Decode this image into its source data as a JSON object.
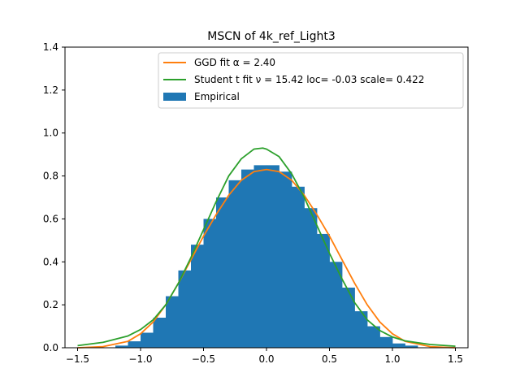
{
  "chart_data": {
    "type": "bar",
    "title": "MSCN of 4k_ref_Light3",
    "xlabel": "",
    "ylabel": "",
    "xlim": [
      -1.6,
      1.6
    ],
    "ylim": [
      0,
      1.4
    ],
    "x_ticks": [
      -1.5,
      -1.0,
      -0.5,
      0.0,
      0.5,
      1.0,
      1.5
    ],
    "x_tick_labels": [
      "−1.5",
      "−1.0",
      "−0.5",
      "0.0",
      "0.5",
      "1.0",
      "1.5"
    ],
    "y_ticks": [
      0.0,
      0.2,
      0.4,
      0.6,
      0.8,
      1.0,
      1.2,
      1.4
    ],
    "y_tick_labels": [
      "0.0",
      "0.2",
      "0.4",
      "0.6",
      "0.8",
      "1.0",
      "1.2",
      "1.4"
    ],
    "legend_position": "top-right",
    "legend": [
      {
        "label": "GGD fit α = 2.40",
        "color": "#ff7f0e",
        "kind": "line"
      },
      {
        "label": "Student t fit ν = 15.42 loc= -0.03 scale= 0.422",
        "color": "#2ca02c",
        "kind": "line"
      },
      {
        "label": "Empirical",
        "color": "#1f77b4",
        "kind": "patch"
      }
    ],
    "histogram": {
      "name": "Empirical",
      "color": "#1f77b4",
      "bin_centers": [
        -1.15,
        -1.05,
        -0.95,
        -0.85,
        -0.75,
        -0.65,
        -0.55,
        -0.45,
        -0.35,
        -0.25,
        -0.15,
        -0.05,
        0.05,
        0.15,
        0.25,
        0.35,
        0.45,
        0.55,
        0.65,
        0.75,
        0.85,
        0.95,
        1.05,
        1.15
      ],
      "bin_width": 0.1,
      "values": [
        0.01,
        0.03,
        0.07,
        0.14,
        0.24,
        0.36,
        0.48,
        0.6,
        0.7,
        0.78,
        0.83,
        0.85,
        0.85,
        0.82,
        0.75,
        0.65,
        0.53,
        0.4,
        0.28,
        0.17,
        0.1,
        0.05,
        0.02,
        0.01
      ]
    },
    "series": [
      {
        "name": "GGD fit α = 2.40",
        "color": "#ff7f0e",
        "x": [
          -1.5,
          -1.3,
          -1.1,
          -1.0,
          -0.9,
          -0.8,
          -0.7,
          -0.6,
          -0.5,
          -0.4,
          -0.3,
          -0.2,
          -0.1,
          0.0,
          0.1,
          0.2,
          0.3,
          0.4,
          0.5,
          0.6,
          0.7,
          0.8,
          0.9,
          1.0,
          1.1,
          1.3,
          1.5
        ],
        "y": [
          0.0,
          0.005,
          0.03,
          0.065,
          0.12,
          0.2,
          0.3,
          0.41,
          0.52,
          0.62,
          0.71,
          0.78,
          0.82,
          0.83,
          0.82,
          0.78,
          0.71,
          0.62,
          0.52,
          0.41,
          0.3,
          0.2,
          0.12,
          0.065,
          0.03,
          0.005,
          0.0
        ]
      },
      {
        "name": "Student t fit ν = 15.42 loc= -0.03 scale= 0.422",
        "color": "#2ca02c",
        "x": [
          -1.5,
          -1.3,
          -1.1,
          -1.0,
          -0.9,
          -0.8,
          -0.7,
          -0.6,
          -0.5,
          -0.4,
          -0.3,
          -0.2,
          -0.1,
          -0.03,
          0.0,
          0.1,
          0.2,
          0.3,
          0.4,
          0.5,
          0.6,
          0.7,
          0.8,
          0.9,
          1.0,
          1.1,
          1.3,
          1.5
        ],
        "y": [
          0.01,
          0.025,
          0.055,
          0.085,
          0.13,
          0.2,
          0.3,
          0.42,
          0.55,
          0.68,
          0.8,
          0.88,
          0.925,
          0.93,
          0.925,
          0.89,
          0.81,
          0.7,
          0.57,
          0.44,
          0.32,
          0.21,
          0.13,
          0.08,
          0.05,
          0.032,
          0.015,
          0.007
        ]
      }
    ]
  }
}
